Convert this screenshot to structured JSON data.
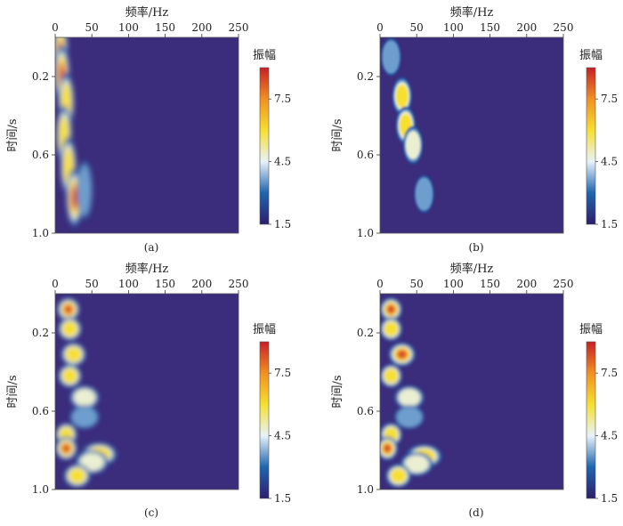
{
  "figure": {
    "panels": [
      "(a)",
      "(b)",
      "(c)",
      "(d)"
    ]
  },
  "chart_data": [
    {
      "type": "heatmap",
      "panel": "(a)",
      "xlabel": "频率/Hz",
      "ylabel": "时间/s",
      "xticks": [
        0,
        50,
        100,
        150,
        200,
        250
      ],
      "yticks": [
        "0.2",
        "0.6",
        "1.0"
      ],
      "xlim": [
        0,
        250
      ],
      "ylim": [
        0,
        1.0
      ],
      "x_axis_position": "top",
      "y_axis_inverted": true,
      "colorbar": {
        "title": "振幅",
        "ticks": [
          "1.5",
          "4.5",
          "7.5"
        ],
        "range": [
          1.5,
          9.0
        ],
        "colors": [
          "#2d1e6e",
          "#1d65b0",
          "#e8f3fa",
          "#f7df2e",
          "#f29021",
          "#c81f27"
        ]
      },
      "background_color": "#3b2c7c",
      "description_data": [
        {
          "f": 7,
          "t": 0.08,
          "amp": 9.0
        },
        {
          "f": 9,
          "t": 0.19,
          "amp": 8.5
        },
        {
          "f": 15,
          "t": 0.33,
          "amp": 7.0
        },
        {
          "f": 12,
          "t": 0.5,
          "amp": 6.5
        },
        {
          "f": 18,
          "t": 0.66,
          "amp": 7.0
        },
        {
          "f": 26,
          "t": 0.82,
          "amp": 9.0
        },
        {
          "f": 40,
          "t": 0.78,
          "amp": 4.5
        }
      ]
    },
    {
      "type": "heatmap",
      "panel": "(b)",
      "xlabel": "频率/Hz",
      "ylabel": "时间/s",
      "xticks": [
        0,
        50,
        100,
        150,
        200,
        250
      ],
      "yticks": [
        "0.2",
        "0.6",
        "1.0"
      ],
      "xlim": [
        0,
        250
      ],
      "ylim": [
        0,
        1.0
      ],
      "x_axis_position": "top",
      "y_axis_inverted": true,
      "colorbar": {
        "title": "振幅",
        "ticks": [
          "1.5",
          "4.5",
          "7.5"
        ],
        "range": [
          1.5,
          9.0
        ],
        "colors": [
          "#2d1e6e",
          "#1d65b0",
          "#e8f3fa",
          "#f7df2e",
          "#f29021",
          "#c81f27"
        ]
      },
      "background_color": "#3b2c7c",
      "description_data": [
        {
          "f": 15,
          "t": 0.1,
          "amp": 4.0
        },
        {
          "f": 30,
          "t": 0.3,
          "amp": 6.0
        },
        {
          "f": 35,
          "t": 0.45,
          "amp": 7.0
        },
        {
          "f": 45,
          "t": 0.55,
          "amp": 5.0
        },
        {
          "f": 60,
          "t": 0.8,
          "amp": 4.0
        }
      ]
    },
    {
      "type": "heatmap",
      "panel": "(c)",
      "xlabel": "频率/Hz",
      "ylabel": "时间/s",
      "xticks": [
        0,
        50,
        100,
        150,
        200,
        250
      ],
      "yticks": [
        "0.2",
        "0.6",
        "1.0"
      ],
      "xlim": [
        0,
        250
      ],
      "ylim": [
        0,
        1.0
      ],
      "x_axis_position": "top",
      "y_axis_inverted": true,
      "colorbar": {
        "title": "振幅",
        "ticks": [
          "1.5",
          "4.5",
          "7.5"
        ],
        "range": [
          1.5,
          9.0
        ],
        "colors": [
          "#2d1e6e",
          "#1d65b0",
          "#e8f3fa",
          "#f7df2e",
          "#f29021",
          "#c81f27"
        ]
      },
      "background_color": "#3b2c7c",
      "description_data": [
        {
          "f": 18,
          "t": 0.08,
          "amp": 9.0
        },
        {
          "f": 20,
          "t": 0.18,
          "amp": 7.0
        },
        {
          "f": 25,
          "t": 0.31,
          "amp": 7.0
        },
        {
          "f": 20,
          "t": 0.42,
          "amp": 6.5
        },
        {
          "f": 40,
          "t": 0.53,
          "amp": 5.0
        },
        {
          "f": 40,
          "t": 0.63,
          "amp": 4.5
        },
        {
          "f": 15,
          "t": 0.72,
          "amp": 6.5
        },
        {
          "f": 15,
          "t": 0.79,
          "amp": 9.0
        },
        {
          "f": 60,
          "t": 0.82,
          "amp": 6.0
        },
        {
          "f": 50,
          "t": 0.86,
          "amp": 5.5
        },
        {
          "f": 30,
          "t": 0.93,
          "amp": 6.0
        }
      ]
    },
    {
      "type": "heatmap",
      "panel": "(d)",
      "xlabel": "频率/Hz",
      "ylabel": "时间/s",
      "xticks": [
        0,
        50,
        100,
        150,
        200,
        250
      ],
      "yticks": [
        "0.2",
        "0.6",
        "1.0"
      ],
      "xlim": [
        0,
        250
      ],
      "ylim": [
        0,
        1.0
      ],
      "x_axis_position": "top",
      "y_axis_inverted": true,
      "colorbar": {
        "title": "振幅",
        "ticks": [
          "1.5",
          "4.5",
          "7.5"
        ],
        "range": [
          1.5,
          9.0
        ],
        "colors": [
          "#2d1e6e",
          "#1d65b0",
          "#e8f3fa",
          "#f7df2e",
          "#f29021",
          "#c81f27"
        ]
      },
      "background_color": "#3b2c7c",
      "description_data": [
        {
          "f": 15,
          "t": 0.08,
          "amp": 9.0
        },
        {
          "f": 15,
          "t": 0.18,
          "amp": 6.5
        },
        {
          "f": 30,
          "t": 0.31,
          "amp": 9.0
        },
        {
          "f": 15,
          "t": 0.42,
          "amp": 7.0
        },
        {
          "f": 40,
          "t": 0.53,
          "amp": 5.5
        },
        {
          "f": 40,
          "t": 0.63,
          "amp": 4.5
        },
        {
          "f": 15,
          "t": 0.72,
          "amp": 6.0
        },
        {
          "f": 10,
          "t": 0.79,
          "amp": 9.0
        },
        {
          "f": 60,
          "t": 0.83,
          "amp": 6.5
        },
        {
          "f": 50,
          "t": 0.87,
          "amp": 5.5
        },
        {
          "f": 25,
          "t": 0.93,
          "amp": 6.0
        }
      ]
    }
  ]
}
